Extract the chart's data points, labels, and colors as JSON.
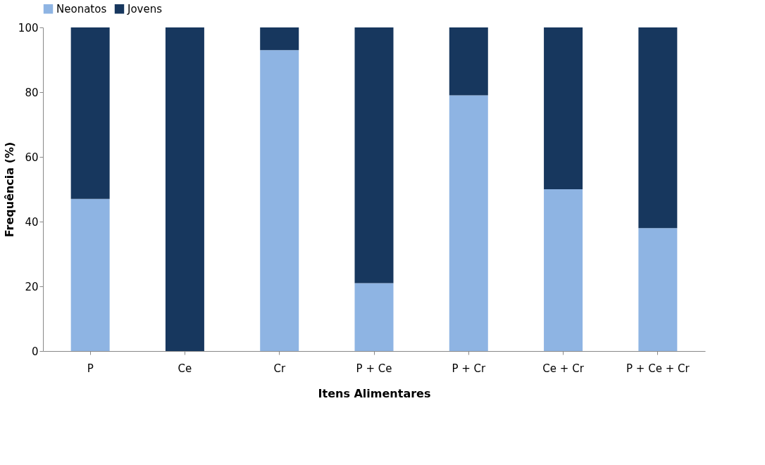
{
  "chart_data": {
    "type": "bar",
    "stacked": true,
    "xlabel": "Itens Alimentares",
    "ylabel": "Frequência (%)",
    "categories": [
      "P",
      "Ce",
      "Cr",
      "P + Ce",
      "P + Cr",
      "Ce + Cr",
      "P + Ce + Cr"
    ],
    "series": [
      {
        "name": "Neonatos",
        "color": "#8eb4e3",
        "values": [
          47,
          0,
          93,
          21,
          79,
          50,
          38
        ]
      },
      {
        "name": "Jovens",
        "color": "#17375e",
        "values": [
          53,
          100,
          7,
          79,
          21,
          50,
          62
        ]
      }
    ],
    "ylim": [
      0,
      100
    ],
    "yticks": [
      0,
      20,
      40,
      60,
      80,
      100
    ],
    "grid": false,
    "legend": "top"
  }
}
